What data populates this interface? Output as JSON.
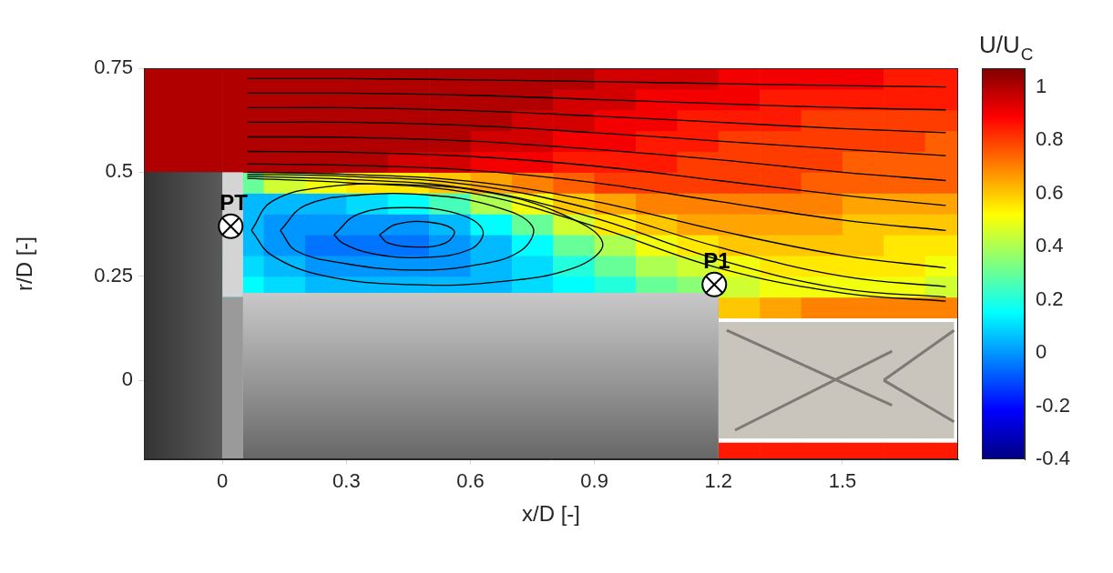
{
  "chart_data": {
    "type": "heatmap",
    "x_label": "x/D [-]",
    "y_label": "r/D [-]",
    "xlim": [
      -0.19,
      1.78
    ],
    "ylim": [
      -0.19,
      0.75
    ],
    "xticks": [
      0,
      0.3,
      0.6,
      0.9,
      1.2,
      1.5
    ],
    "yticks": [
      0,
      0.25,
      0.5,
      0.75
    ],
    "grid": true,
    "field": {
      "x": [
        -0.15,
        -0.05,
        0.05,
        0.15,
        0.25,
        0.35,
        0.45,
        0.55,
        0.65,
        0.75,
        0.85,
        0.95,
        1.05,
        1.15,
        1.25,
        1.35,
        1.45,
        1.55,
        1.65,
        1.75
      ],
      "r": [
        -0.175,
        -0.125,
        -0.075,
        -0.025,
        0.025,
        0.075,
        0.125,
        0.175,
        0.225,
        0.275,
        0.325,
        0.375,
        0.425,
        0.475,
        0.525,
        0.575,
        0.625,
        0.675,
        0.725
      ],
      "values": [
        [
          null,
          null,
          null,
          null,
          null,
          null,
          null,
          null,
          null,
          null,
          null,
          null,
          null,
          null,
          0.85,
          0.85,
          0.85,
          0.85,
          0.85,
          0.85
        ],
        [
          null,
          null,
          null,
          null,
          null,
          null,
          null,
          null,
          null,
          null,
          null,
          null,
          null,
          null,
          null,
          null,
          null,
          null,
          null,
          null
        ],
        [
          null,
          null,
          null,
          null,
          null,
          null,
          null,
          null,
          null,
          null,
          null,
          null,
          null,
          null,
          null,
          null,
          null,
          null,
          null,
          null
        ],
        [
          null,
          null,
          null,
          null,
          null,
          null,
          null,
          null,
          null,
          null,
          null,
          null,
          null,
          null,
          null,
          null,
          null,
          null,
          null,
          null
        ],
        [
          null,
          null,
          null,
          null,
          null,
          null,
          null,
          null,
          null,
          null,
          null,
          null,
          null,
          null,
          null,
          null,
          null,
          null,
          null,
          null
        ],
        [
          null,
          null,
          null,
          null,
          null,
          null,
          null,
          null,
          null,
          null,
          null,
          null,
          null,
          null,
          null,
          null,
          null,
          null,
          null,
          null
        ],
        [
          null,
          null,
          null,
          null,
          null,
          null,
          null,
          null,
          null,
          null,
          null,
          null,
          null,
          null,
          null,
          null,
          null,
          null,
          null,
          null
        ],
        [
          null,
          null,
          null,
          null,
          null,
          null,
          null,
          null,
          null,
          null,
          null,
          null,
          null,
          null,
          0.6,
          0.65,
          0.7,
          0.7,
          0.7,
          0.7
        ],
        [
          null,
          null,
          0.15,
          0.1,
          0.05,
          0.05,
          0.05,
          0.05,
          0.05,
          0.1,
          0.15,
          0.2,
          0.3,
          0.35,
          0.45,
          0.5,
          0.5,
          0.5,
          0.5,
          0.45
        ],
        [
          null,
          null,
          0.1,
          0.05,
          0,
          0,
          0,
          0,
          0.05,
          0.1,
          0.2,
          0.3,
          0.4,
          0.45,
          0.5,
          0.55,
          0.55,
          0.55,
          0.55,
          0.5
        ],
        [
          null,
          null,
          0.05,
          0,
          -0.05,
          -0.05,
          -0.05,
          0,
          0.05,
          0.15,
          0.3,
          0.4,
          0.5,
          0.55,
          0.6,
          0.6,
          0.6,
          0.6,
          0.55,
          0.55
        ],
        [
          null,
          null,
          0.05,
          0,
          0,
          0,
          0,
          0.05,
          0.15,
          0.3,
          0.45,
          0.55,
          0.6,
          0.65,
          0.65,
          0.65,
          0.65,
          0.6,
          0.6,
          0.6
        ],
        [
          null,
          null,
          0.05,
          0.05,
          0.05,
          0.1,
          0.15,
          0.25,
          0.4,
          0.5,
          0.6,
          0.65,
          0.7,
          0.7,
          0.7,
          0.7,
          0.7,
          0.65,
          0.65,
          0.65
        ],
        [
          null,
          null,
          0.3,
          0.45,
          0.5,
          0.55,
          0.55,
          0.6,
          0.65,
          0.7,
          0.75,
          0.8,
          0.8,
          0.8,
          0.8,
          0.8,
          0.75,
          0.75,
          0.75,
          0.75
        ],
        [
          1,
          1,
          1,
          1,
          1,
          1,
          0.95,
          0.95,
          0.9,
          0.9,
          0.85,
          0.85,
          0.85,
          0.8,
          0.8,
          0.8,
          0.8,
          0.75,
          0.75,
          0.75
        ],
        [
          1,
          1,
          1,
          1,
          1,
          1,
          1,
          1,
          0.95,
          0.95,
          0.9,
          0.9,
          0.85,
          0.85,
          0.8,
          0.8,
          0.8,
          0.8,
          0.8,
          0.75
        ],
        [
          1,
          1,
          1,
          1,
          1,
          1,
          1,
          1,
          1,
          0.95,
          0.95,
          0.9,
          0.9,
          0.85,
          0.85,
          0.85,
          0.8,
          0.8,
          0.8,
          0.8
        ],
        [
          1,
          1,
          1,
          1,
          1,
          1,
          1,
          1,
          1,
          1,
          0.95,
          0.95,
          0.9,
          0.9,
          0.9,
          0.85,
          0.85,
          0.85,
          0.85,
          0.85
        ],
        [
          1,
          1,
          1,
          1,
          1,
          1,
          1,
          1,
          1,
          1,
          1,
          0.95,
          0.95,
          0.95,
          0.9,
          0.9,
          0.9,
          0.9,
          0.85,
          0.85
        ]
      ]
    },
    "colorbar": {
      "title": "U/UC",
      "range": [
        -0.4,
        1.07
      ],
      "ticks": [
        -0.4,
        -0.2,
        0,
        0.2,
        0.4,
        0.6,
        0.8,
        1
      ]
    },
    "streamlines": {
      "color": "#000000",
      "lines": [
        {
          "x": [
            0.06,
            0.3,
            0.6,
            0.9,
            1.2,
            1.5,
            1.75
          ],
          "r": [
            0.725,
            0.725,
            0.722,
            0.718,
            0.713,
            0.708,
            0.705
          ]
        },
        {
          "x": [
            0.06,
            0.3,
            0.6,
            0.9,
            1.2,
            1.5,
            1.75
          ],
          "r": [
            0.69,
            0.69,
            0.685,
            0.675,
            0.665,
            0.655,
            0.65
          ]
        },
        {
          "x": [
            0.06,
            0.3,
            0.6,
            0.9,
            1.2,
            1.5,
            1.75
          ],
          "r": [
            0.655,
            0.655,
            0.648,
            0.635,
            0.62,
            0.605,
            0.595
          ]
        },
        {
          "x": [
            0.06,
            0.3,
            0.6,
            0.9,
            1.2,
            1.5,
            1.75
          ],
          "r": [
            0.62,
            0.62,
            0.612,
            0.595,
            0.575,
            0.555,
            0.54
          ]
        },
        {
          "x": [
            0.06,
            0.3,
            0.6,
            0.9,
            1.2,
            1.5,
            1.75
          ],
          "r": [
            0.585,
            0.584,
            0.575,
            0.555,
            0.53,
            0.5,
            0.48
          ]
        },
        {
          "x": [
            0.06,
            0.3,
            0.6,
            0.9,
            1.2,
            1.5,
            1.75
          ],
          "r": [
            0.55,
            0.548,
            0.538,
            0.515,
            0.48,
            0.445,
            0.42
          ]
        },
        {
          "x": [
            0.06,
            0.3,
            0.6,
            0.9,
            1.2,
            1.5,
            1.75
          ],
          "r": [
            0.52,
            0.517,
            0.505,
            0.475,
            0.43,
            0.385,
            0.36
          ]
        },
        {
          "x": [
            0.06,
            0.3,
            0.6,
            0.9,
            1.2,
            1.5,
            1.75
          ],
          "r": [
            0.5,
            0.495,
            0.478,
            0.43,
            0.36,
            0.3,
            0.27
          ]
        },
        {
          "x": [
            0.06,
            0.3,
            0.6,
            0.9,
            1.2,
            1.5,
            1.75
          ],
          "r": [
            0.495,
            0.49,
            0.47,
            0.41,
            0.32,
            0.25,
            0.225
          ]
        },
        {
          "x": [
            0.06,
            0.3,
            0.6,
            0.9,
            1.2,
            1.5,
            1.75
          ],
          "r": [
            0.49,
            0.483,
            0.46,
            0.39,
            0.29,
            0.22,
            0.2
          ]
        },
        {
          "x": [
            0.06,
            0.3,
            0.6,
            0.9,
            1.2,
            1.5,
            1.75
          ],
          "r": [
            0.485,
            0.475,
            0.45,
            0.37,
            0.27,
            0.21,
            0.19
          ]
        },
        {
          "x": [
            0.07,
            0.12,
            0.25,
            0.45,
            0.65,
            0.82,
            0.92,
            0.85,
            0.65,
            0.45,
            0.25,
            0.12,
            0.07
          ],
          "r": [
            0.36,
            0.43,
            0.465,
            0.47,
            0.45,
            0.4,
            0.33,
            0.27,
            0.235,
            0.23,
            0.25,
            0.3,
            0.36
          ]
        },
        {
          "x": [
            0.14,
            0.2,
            0.33,
            0.5,
            0.65,
            0.75,
            0.72,
            0.6,
            0.45,
            0.3,
            0.18,
            0.14
          ],
          "r": [
            0.36,
            0.42,
            0.445,
            0.445,
            0.42,
            0.37,
            0.31,
            0.275,
            0.265,
            0.28,
            0.31,
            0.36
          ]
        },
        {
          "x": [
            0.27,
            0.33,
            0.45,
            0.57,
            0.63,
            0.6,
            0.48,
            0.36,
            0.29,
            0.27
          ],
          "r": [
            0.35,
            0.4,
            0.415,
            0.4,
            0.36,
            0.315,
            0.295,
            0.305,
            0.33,
            0.35
          ]
        },
        {
          "x": [
            0.38,
            0.42,
            0.5,
            0.56,
            0.54,
            0.47,
            0.4,
            0.38
          ],
          "r": [
            0.35,
            0.375,
            0.38,
            0.36,
            0.33,
            0.32,
            0.33,
            0.35
          ]
        }
      ]
    },
    "annotations": [
      {
        "text": "PT",
        "x": 0.02,
        "y": 0.37,
        "marker": "circle-x"
      },
      {
        "text": "P1",
        "x": 1.19,
        "y": 0.23,
        "marker": "circle-x"
      }
    ]
  }
}
